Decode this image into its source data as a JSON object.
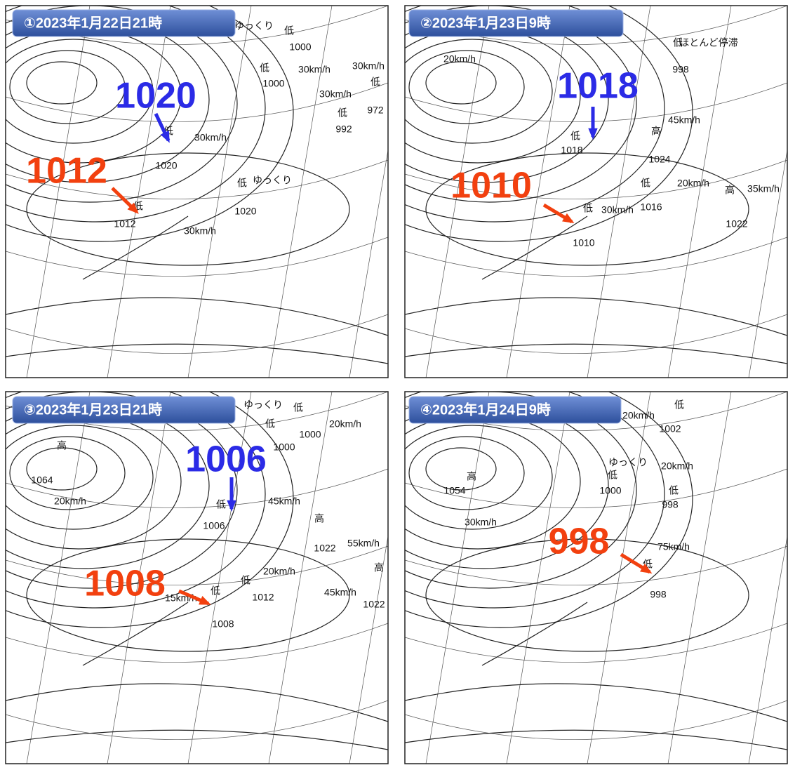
{
  "panels": [
    {
      "title": "①2023年1月22日21時",
      "highlights": [
        {
          "label": "1020",
          "color": "#2b2be6"
        },
        {
          "label": "1012",
          "color": "#f2400f"
        }
      ],
      "annotations": [
        "低",
        "30km/h",
        "1020",
        "低",
        "1012",
        "30km/h",
        "低",
        "ゆっくり",
        "1020",
        "ゆっくり",
        "低",
        "1000",
        "低",
        "30km/h",
        "1000",
        "30km/h",
        "30km/h",
        "低",
        "992",
        "低",
        "972"
      ]
    },
    {
      "title": "②2023年1月23日9時",
      "highlights": [
        {
          "label": "1018",
          "color": "#2b2be6"
        },
        {
          "label": "1010",
          "color": "#f2400f"
        }
      ],
      "annotations": [
        "低",
        "ほとんど停滞",
        "998",
        "20km/h",
        "低",
        "1018",
        "高",
        "45km/h",
        "1024",
        "低",
        "20km/h",
        "1016",
        "高",
        "35km/h",
        "1022",
        "低",
        "30km/h",
        "1010"
      ]
    },
    {
      "title": "③2023年1月23日21時",
      "highlights": [
        {
          "label": "1006",
          "color": "#2b2be6"
        },
        {
          "label": "1008",
          "color": "#f2400f"
        }
      ],
      "annotations": [
        "高",
        "1064",
        "20km/h",
        "ゆっくり",
        "低",
        "低",
        "1000",
        "20km/h",
        "1000",
        "低",
        "1006",
        "45km/h",
        "高",
        "1022",
        "55km/h",
        "20km/h",
        "低",
        "1012",
        "45km/h",
        "高",
        "1022",
        "低",
        "15km/h",
        "1008"
      ]
    },
    {
      "title": "④2023年1月24日9時",
      "highlights": [
        {
          "label": "998",
          "color": "#f2400f"
        }
      ],
      "annotations": [
        "20km/h",
        "低",
        "1002",
        "ゆっくり",
        "低",
        "20km/h",
        "1000",
        "低",
        "998",
        "高",
        "1054",
        "30km/h",
        "低",
        "75km/h",
        "998"
      ]
    }
  ]
}
